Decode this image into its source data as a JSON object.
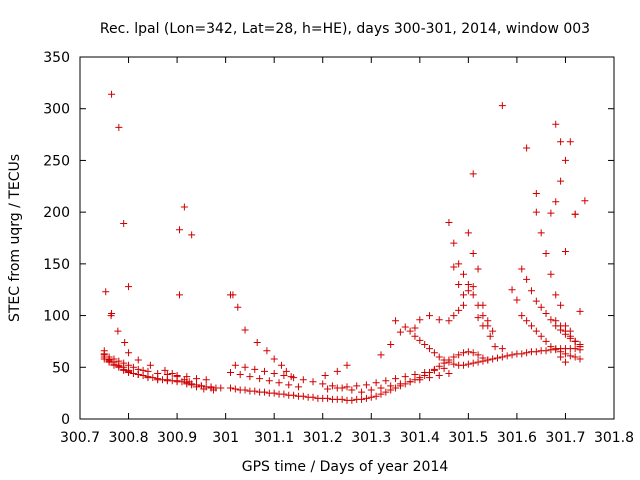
{
  "chart_data": {
    "type": "scatter",
    "title": "Rec. lpal (Lon=342, Lat=28, h=HE), days 300-301, 2014, window 003",
    "xlabel": "GPS time / Days of year 2014",
    "ylabel": "STEC from uqrg / TECUs",
    "xlim": [
      300.7,
      301.8
    ],
    "ylim": [
      0,
      350
    ],
    "xticks": [
      300.7,
      300.8,
      300.9,
      301.0,
      301.1,
      301.2,
      301.3,
      301.4,
      301.5,
      301.6,
      301.7,
      301.8
    ],
    "xtick_labels": [
      "300.7",
      "300.8",
      "300.9",
      "301",
      "301.1",
      "301.2",
      "301.3",
      "301.4",
      "301.5",
      "301.6",
      "301.7",
      "301.8"
    ],
    "yticks": [
      0,
      50,
      100,
      150,
      200,
      250,
      300,
      350
    ],
    "ytick_labels": [
      "0",
      "50",
      "100",
      "150",
      "200",
      "250",
      "300",
      "350"
    ],
    "marker": "plus",
    "marker_color": "#d00000",
    "grid": false,
    "x": [
      300.75,
      300.75,
      300.75,
      300.76,
      300.76,
      300.76,
      300.77,
      300.77,
      300.77,
      300.78,
      300.78,
      300.79,
      300.79,
      300.8,
      300.8,
      300.81,
      300.82,
      300.83,
      300.84,
      300.85,
      300.86,
      300.87,
      300.88,
      300.89,
      300.9,
      300.91,
      300.92,
      300.93,
      300.94,
      300.95,
      300.96,
      300.97,
      300.98,
      300.99,
      300.75,
      300.76,
      300.77,
      300.78,
      300.79,
      300.8,
      300.81,
      300.82,
      300.83,
      300.84,
      300.86,
      300.88,
      300.9,
      300.92,
      300.94,
      300.96,
      300.75,
      300.76,
      300.77,
      300.78,
      300.79,
      300.8,
      300.82,
      300.84,
      300.86,
      300.88,
      300.9,
      300.92,
      300.95,
      300.97,
      300.753,
      300.764,
      300.778,
      300.792,
      300.8,
      300.82,
      300.845,
      300.875,
      300.89,
      300.9,
      300.915,
      300.925,
      300.93,
      300.94,
      300.955,
      300.975,
      301.01,
      301.02,
      301.03,
      301.04,
      301.05,
      301.06,
      301.07,
      301.08,
      301.09,
      301.1,
      301.11,
      301.12,
      301.13,
      301.14,
      301.15,
      301.16,
      301.17,
      301.18,
      301.19,
      301.2,
      301.21,
      301.22,
      301.23,
      301.24,
      301.25,
      301.26,
      301.27,
      301.28,
      301.29,
      301.3,
      301.31,
      301.32,
      301.33,
      301.34,
      301.35,
      301.36,
      301.37,
      301.38,
      301.39,
      301.4,
      301.41,
      301.42,
      301.43,
      301.44,
      301.45,
      301.46,
      301.47,
      301.48,
      301.49,
      301.5,
      301.51,
      301.52,
      301.53,
      301.54,
      301.02,
      301.04,
      301.06,
      301.08,
      301.1,
      301.12,
      301.14,
      301.16,
      301.18,
      301.2,
      301.22,
      301.24,
      301.26,
      301.28,
      301.3,
      301.32,
      301.34,
      301.36,
      301.38,
      301.4,
      301.42,
      301.44,
      301.46,
      301.01,
      301.03,
      301.05,
      301.07,
      301.09,
      301.11,
      301.13,
      301.15,
      301.21,
      301.23,
      301.25,
      301.27,
      301.29,
      301.31,
      301.33,
      301.35,
      301.37,
      301.39,
      301.41,
      301.43,
      301.45,
      301.015,
      301.025,
      301.04,
      301.065,
      301.085,
      301.1,
      301.115,
      301.125,
      301.135,
      301.205,
      301.23,
      301.25,
      301.32,
      301.34,
      301.36,
      301.39,
      301.4,
      301.42,
      301.44,
      301.35,
      301.37,
      301.38,
      301.39,
      301.4,
      301.41,
      301.42,
      301.43,
      301.44,
      301.45,
      301.46,
      301.47,
      301.48,
      301.49,
      301.5,
      301.51,
      301.52,
      301.53,
      301.54,
      301.55,
      301.56,
      301.57,
      301.58,
      301.59,
      301.6,
      301.61,
      301.62,
      301.63,
      301.64,
      301.65,
      301.66,
      301.67,
      301.68,
      301.69,
      301.7,
      301.71,
      301.72,
      301.73,
      301.46,
      301.47,
      301.48,
      301.49,
      301.5,
      301.51,
      301.52,
      301.53,
      301.54,
      301.55,
      301.47,
      301.48,
      301.49,
      301.5,
      301.51,
      301.52,
      301.53,
      301.54,
      301.46,
      301.47,
      301.48,
      301.49,
      301.5,
      301.51,
      301.52,
      301.53,
      301.545,
      301.555,
      301.57,
      301.59,
      301.6,
      301.61,
      301.62,
      301.63,
      301.64,
      301.65,
      301.66,
      301.67,
      301.68,
      301.69,
      301.7,
      301.71,
      301.72,
      301.73,
      301.64,
      301.65,
      301.66,
      301.67,
      301.68,
      301.69,
      301.7,
      301.71,
      301.72,
      301.73,
      301.61,
      301.62,
      301.63,
      301.64,
      301.65,
      301.66,
      301.67,
      301.68,
      301.69,
      301.7,
      301.71,
      301.72,
      301.73,
      301.67,
      301.68,
      301.69,
      301.7,
      301.71,
      301.72,
      301.73,
      301.68,
      301.69,
      301.7,
      301.71,
      301.72,
      301.73,
      301.69,
      301.7
    ],
    "y": [
      66,
      63,
      60,
      58,
      56,
      55,
      55,
      53,
      52,
      51,
      50,
      48,
      47,
      46,
      45,
      44,
      43,
      42,
      41,
      40,
      39,
      38,
      38,
      37,
      37,
      36,
      35,
      34,
      33,
      32,
      31,
      31,
      30,
      30,
      62,
      60,
      58,
      56,
      54,
      52,
      50,
      48,
      47,
      46,
      44,
      43,
      42,
      41,
      39,
      38,
      58,
      57,
      55,
      52,
      50,
      47,
      43,
      40,
      38,
      37,
      36,
      34,
      32,
      30,
      123,
      100,
      85,
      74,
      64,
      57,
      52,
      47,
      44,
      41,
      38,
      36,
      33,
      31,
      29,
      28,
      30,
      29,
      28,
      28,
      27,
      27,
      26,
      26,
      25,
      25,
      24,
      24,
      23,
      23,
      22,
      22,
      21,
      21,
      20,
      20,
      20,
      19,
      19,
      19,
      18,
      18,
      19,
      19,
      20,
      21,
      22,
      24,
      26,
      28,
      30,
      32,
      34,
      36,
      38,
      40,
      42,
      45,
      48,
      51,
      54,
      57,
      60,
      62,
      64,
      65,
      64,
      62,
      59,
      57,
      52,
      50,
      48,
      46,
      44,
      42,
      40,
      38,
      36,
      34,
      32,
      30,
      28,
      26,
      28,
      30,
      32,
      34,
      36,
      38,
      40,
      42,
      44,
      45,
      43,
      41,
      39,
      37,
      35,
      33,
      31,
      29,
      30,
      31,
      32,
      33,
      35,
      37,
      39,
      41,
      43,
      45,
      47,
      49,
      120,
      108,
      86,
      74,
      66,
      58,
      52,
      46,
      41,
      42,
      46,
      52,
      62,
      72,
      84,
      88,
      96,
      100,
      96,
      95,
      89,
      85,
      80,
      76,
      72,
      68,
      64,
      60,
      57,
      55,
      53,
      52,
      52,
      53,
      54,
      55,
      56,
      57,
      58,
      59,
      60,
      61,
      62,
      63,
      63,
      64,
      65,
      65,
      66,
      66,
      67,
      67,
      68,
      68,
      68,
      68,
      67,
      190,
      170,
      150,
      140,
      130,
      120,
      110,
      100,
      90,
      85,
      147,
      130,
      120,
      180,
      160,
      145,
      110,
      95,
      95,
      100,
      105,
      110,
      124,
      128,
      98,
      90,
      80,
      70,
      68,
      125,
      115,
      100,
      95,
      90,
      85,
      80,
      75,
      70,
      68,
      65,
      63,
      61,
      60,
      58,
      200,
      180,
      160,
      140,
      120,
      110,
      90,
      85,
      75,
      70,
      145,
      135,
      124,
      114,
      108,
      102,
      96,
      90,
      86,
      82,
      78,
      75,
      72,
      199,
      210,
      230,
      250,
      268,
      198,
      104,
      95,
      90,
      85,
      80,
      75,
      70,
      60,
      55
    ],
    "outliers_x": [
      300.765,
      300.78,
      300.79,
      300.8,
      300.765,
      300.905,
      300.905,
      300.915,
      300.93,
      301.01,
      301.57,
      301.51,
      301.62,
      301.64,
      301.68,
      301.69,
      301.7,
      301.72,
      301.74
    ],
    "outliers_y": [
      314,
      282,
      189,
      128,
      102,
      183,
      120,
      205,
      178,
      120,
      303,
      237,
      262,
      218,
      285,
      268,
      162,
      198,
      211
    ]
  }
}
